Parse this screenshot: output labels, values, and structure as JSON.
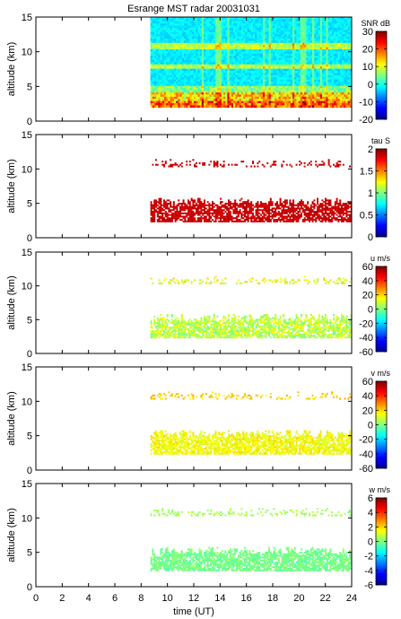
{
  "figure": {
    "title": "Esrange MST radar 20031031",
    "xlabel": "time (UT)",
    "x_ticks": [
      0,
      2,
      4,
      6,
      8,
      10,
      12,
      14,
      16,
      18,
      20,
      22,
      24
    ]
  },
  "chart_data": [
    {
      "type": "heatmap",
      "parameter": "SNR",
      "colorbar_label": "SNR dB",
      "ylabel": "altitude (km)",
      "xlim": [
        0,
        24
      ],
      "ylim": [
        0,
        15
      ],
      "y_ticks": [
        0,
        5,
        10,
        15
      ],
      "clim": [
        -20,
        30
      ],
      "cbar_ticks": [
        -20,
        -10,
        0,
        10,
        20,
        30
      ],
      "data_time_range": [
        8.7,
        24
      ],
      "data_altitude_range": [
        2.2,
        15
      ]
    },
    {
      "type": "heatmap",
      "parameter": "tau",
      "colorbar_label": "tau S",
      "ylabel": "altitude (km)",
      "xlim": [
        0,
        24
      ],
      "ylim": [
        0,
        15
      ],
      "y_ticks": [
        0,
        5,
        10,
        15
      ],
      "clim": [
        0,
        2
      ],
      "cbar_ticks": [
        0,
        0.5,
        1,
        1.5,
        2
      ],
      "layers_km": [
        [
          2.5,
          6.0
        ],
        [
          10.5,
          11.5
        ]
      ]
    },
    {
      "type": "heatmap",
      "parameter": "u",
      "colorbar_label": "u m/s",
      "ylabel": "altitude (km)",
      "xlim": [
        0,
        24
      ],
      "ylim": [
        0,
        15
      ],
      "y_ticks": [
        0,
        5,
        10,
        15
      ],
      "clim": [
        -60,
        60
      ],
      "cbar_ticks": [
        -60,
        -40,
        -20,
        0,
        20,
        40,
        60
      ],
      "layers_km": [
        [
          2.5,
          6.0
        ],
        [
          10.5,
          11.5
        ]
      ]
    },
    {
      "type": "heatmap",
      "parameter": "v",
      "colorbar_label": "v m/s",
      "ylabel": "altitude (km)",
      "xlim": [
        0,
        24
      ],
      "ylim": [
        0,
        15
      ],
      "y_ticks": [
        0,
        5,
        10,
        15
      ],
      "clim": [
        -60,
        60
      ],
      "cbar_ticks": [
        -60,
        -40,
        -20,
        0,
        20,
        40,
        60
      ],
      "layers_km": [
        [
          2.5,
          6.0
        ],
        [
          10.5,
          11.5
        ]
      ]
    },
    {
      "type": "heatmap",
      "parameter": "w",
      "colorbar_label": "w m/s",
      "ylabel": "altitude (km)",
      "xlim": [
        0,
        24
      ],
      "ylim": [
        0,
        15
      ],
      "y_ticks": [
        0,
        5,
        10,
        15
      ],
      "clim": [
        -6,
        6
      ],
      "cbar_ticks": [
        -6,
        -4,
        -2,
        0,
        2,
        4,
        6
      ],
      "layers_km": [
        [
          2.5,
          6.0
        ],
        [
          10.5,
          11.5
        ]
      ]
    }
  ]
}
